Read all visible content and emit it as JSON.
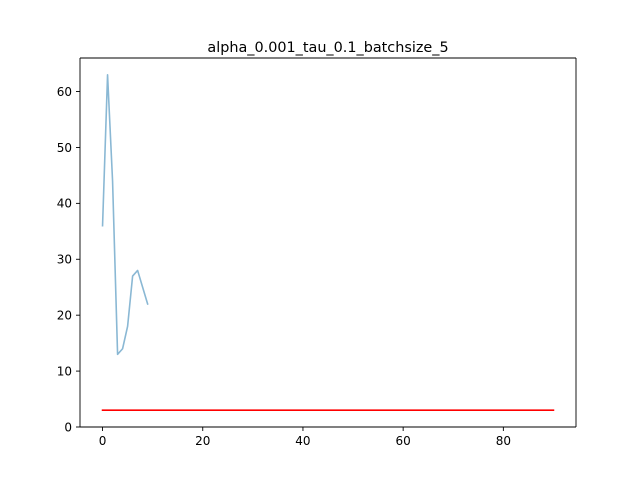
{
  "chart_data": {
    "type": "line",
    "title": "alpha_0.001_tau_0.1_batchsize_5",
    "xlabel": "",
    "ylabel": "",
    "xlim": [
      -4.5,
      94.5
    ],
    "ylim": [
      0,
      66
    ],
    "x_ticks": [
      0,
      20,
      40,
      60,
      80
    ],
    "y_ticks": [
      0,
      10,
      20,
      30,
      40,
      50,
      60
    ],
    "x_tick_labels": [
      "0",
      "20",
      "40",
      "60",
      "80"
    ],
    "y_tick_labels": [
      "0",
      "10",
      "20",
      "30",
      "40",
      "50",
      "60"
    ],
    "grid": false,
    "series": [
      {
        "color": "#8ab8d4",
        "x": [
          0,
          1,
          2,
          3,
          4,
          5,
          6,
          7,
          8,
          9
        ],
        "values": [
          36,
          63,
          44,
          13,
          14,
          18,
          27,
          28,
          25,
          22
        ]
      },
      {
        "color": "#ff0000",
        "x": [
          0,
          90
        ],
        "values": [
          3,
          3
        ]
      }
    ]
  }
}
